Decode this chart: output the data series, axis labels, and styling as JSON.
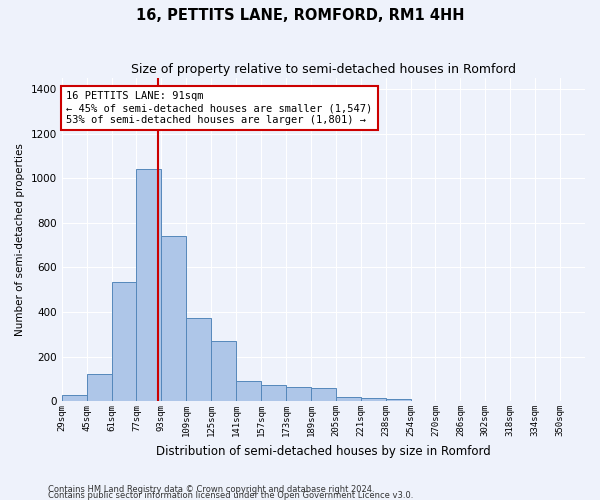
{
  "title": "16, PETTITS LANE, ROMFORD, RM1 4HH",
  "subtitle": "Size of property relative to semi-detached houses in Romford",
  "xlabel": "Distribution of semi-detached houses by size in Romford",
  "ylabel": "Number of semi-detached properties",
  "categories": [
    "29sqm",
    "45sqm",
    "61sqm",
    "77sqm",
    "93sqm",
    "109sqm",
    "125sqm",
    "141sqm",
    "157sqm",
    "173sqm",
    "189sqm",
    "205sqm",
    "221sqm",
    "238sqm",
    "254sqm",
    "270sqm",
    "286sqm",
    "302sqm",
    "318sqm",
    "334sqm",
    "350sqm"
  ],
  "values": [
    28,
    120,
    535,
    1040,
    740,
    375,
    270,
    90,
    72,
    62,
    60,
    20,
    15,
    10,
    0,
    0,
    0,
    0,
    0,
    0,
    0
  ],
  "bar_color": "#aec6e8",
  "bar_edge_color": "#5588bb",
  "property_line_x": 91,
  "property_line_color": "#cc0000",
  "annotation_text": "16 PETTITS LANE: 91sqm\n← 45% of semi-detached houses are smaller (1,547)\n53% of semi-detached houses are larger (1,801) →",
  "annotation_box_color": "#ffffff",
  "annotation_box_edge": "#cc0000",
  "ylim": [
    0,
    1450
  ],
  "yticks": [
    0,
    200,
    400,
    600,
    800,
    1000,
    1200,
    1400
  ],
  "footnote1": "Contains HM Land Registry data © Crown copyright and database right 2024.",
  "footnote2": "Contains public sector information licensed under the Open Government Licence v3.0.",
  "background_color": "#eef2fb",
  "grid_color": "#ffffff",
  "bin_width": 16
}
